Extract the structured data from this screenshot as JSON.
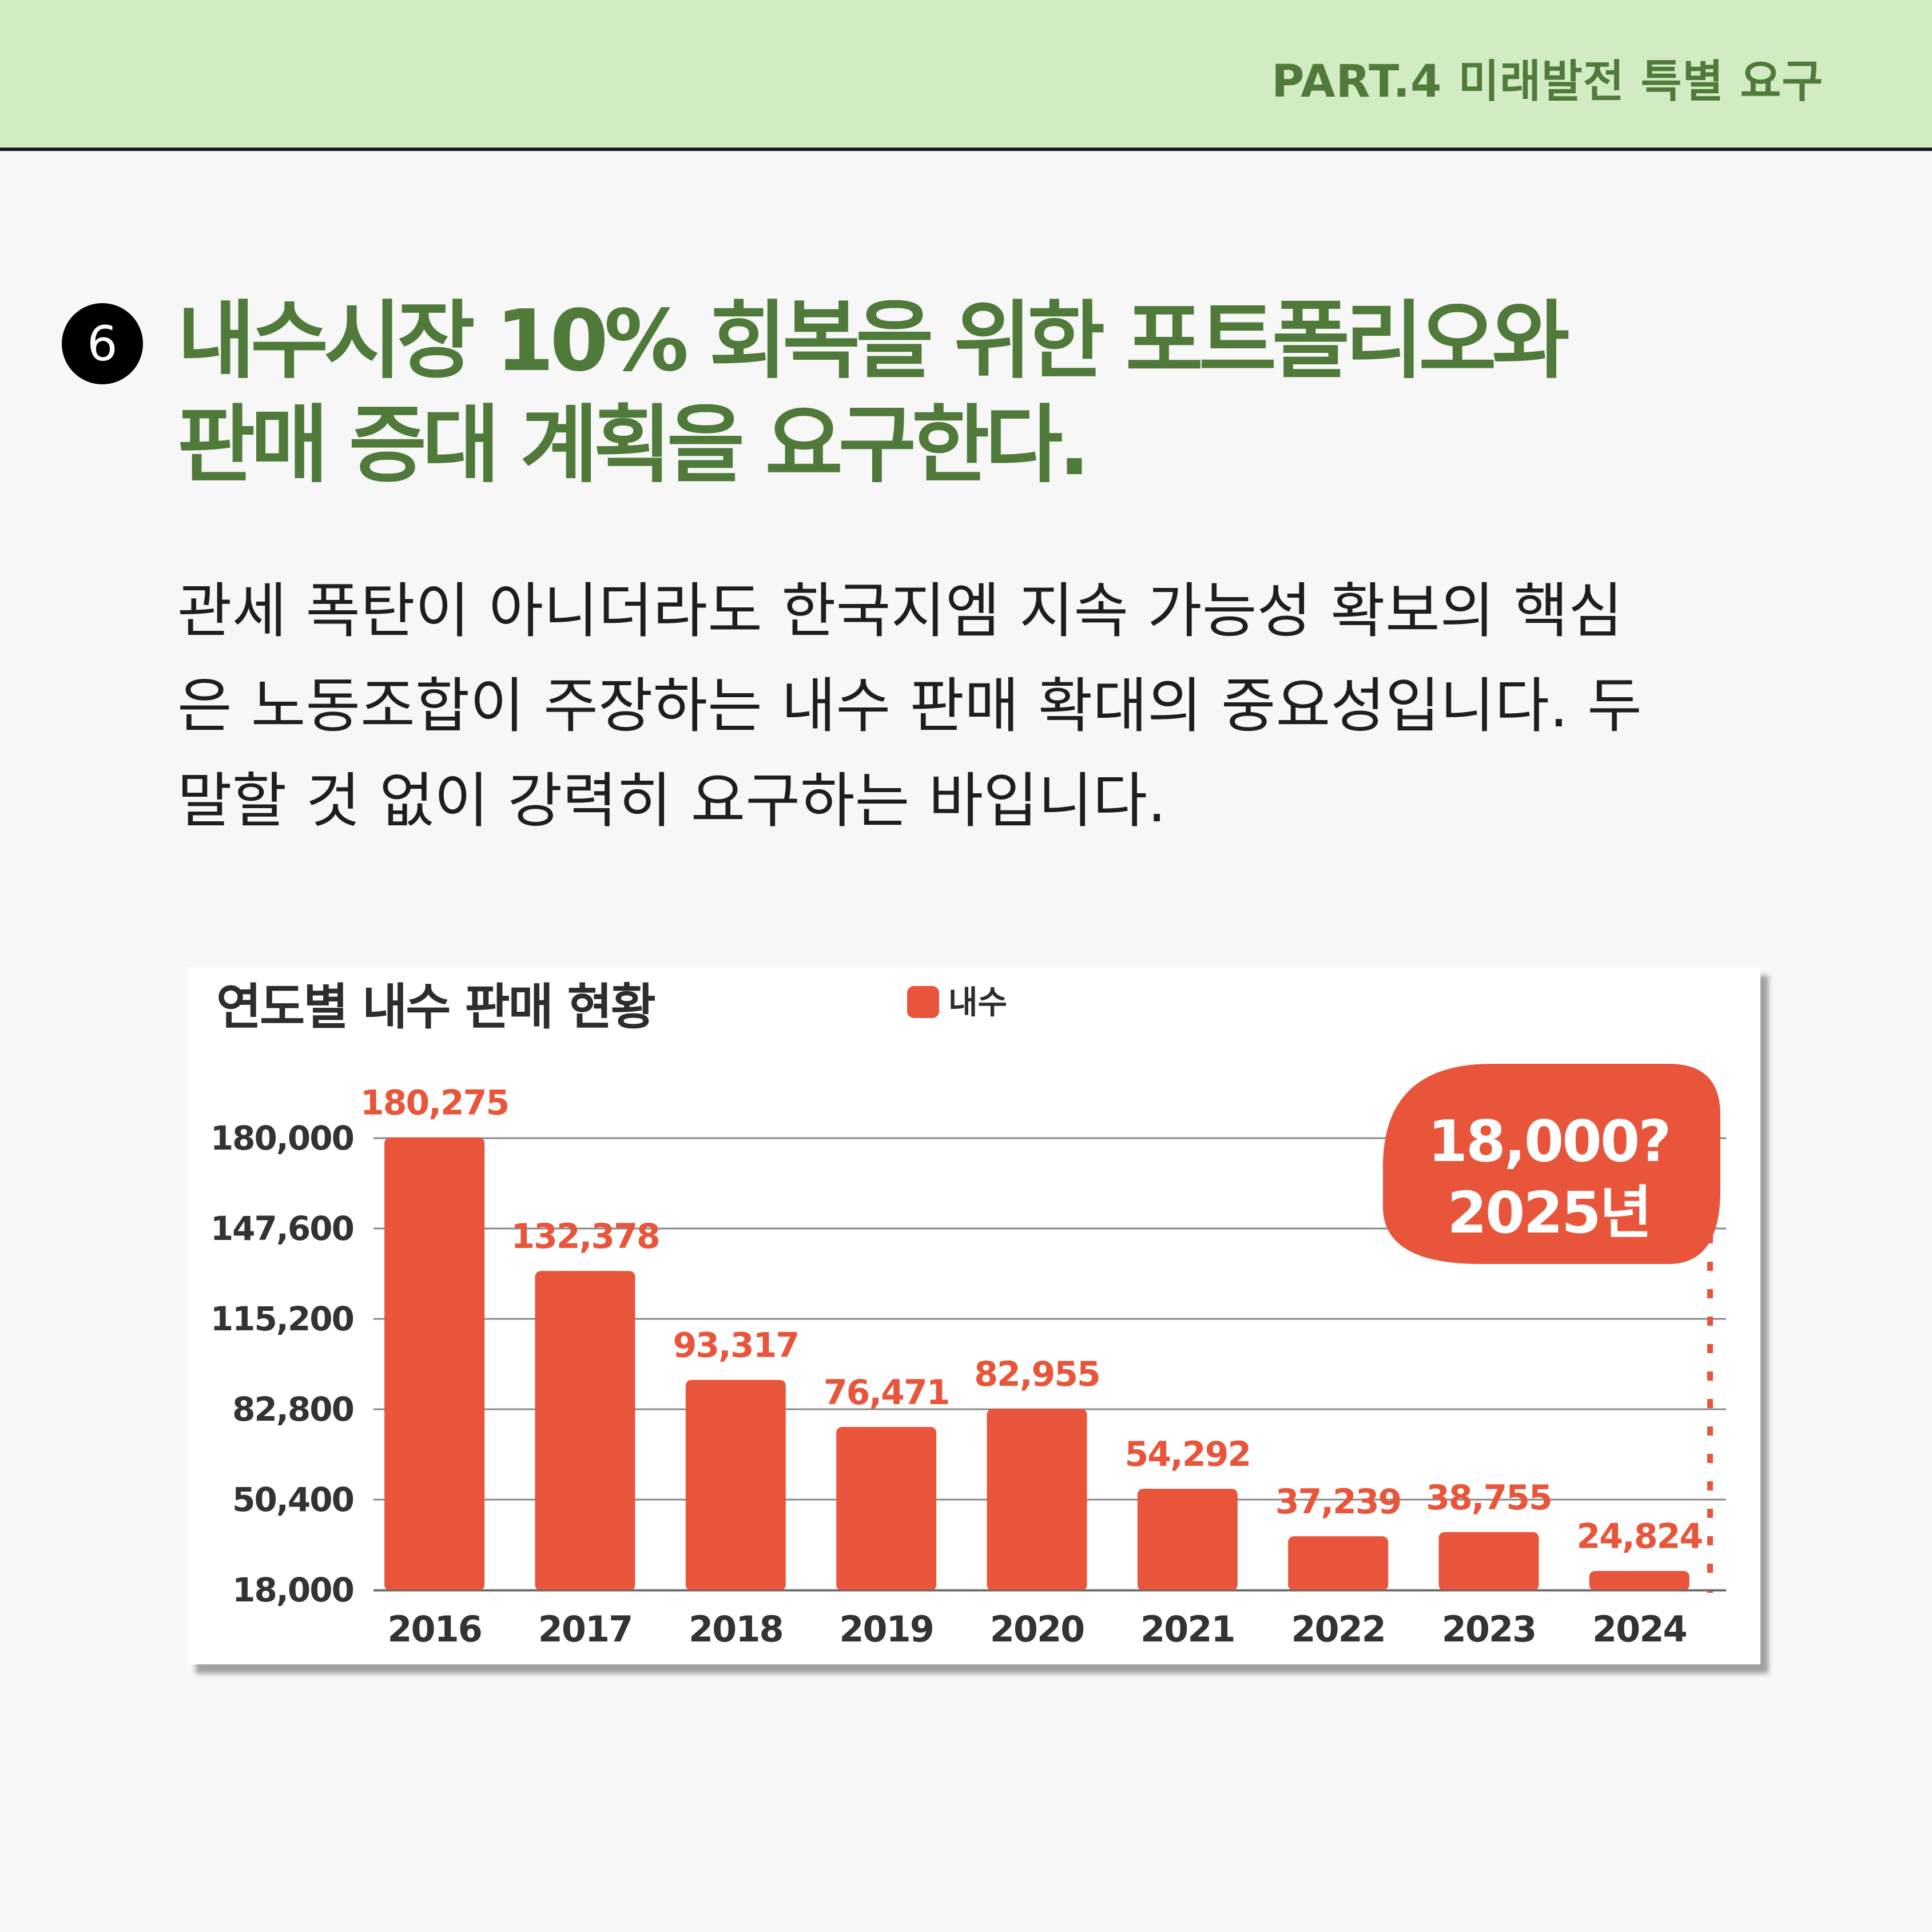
{
  "header": {
    "part_label": "PART.4 미래발전 특별 요구"
  },
  "section": {
    "number": "6",
    "title_line1": "내수시장 10% 회복을 위한 포트폴리오와",
    "title_line2": "판매 증대 계획을 요구한다."
  },
  "body": {
    "line1": "관세 폭탄이 아니더라도 한국지엠 지속 가능성 확보의 핵심",
    "line2": "은 노동조합이 주장하는 내수 판매 확대의 중요성입니다. 두",
    "line3": "말할 것 없이 강력히 요구하는 바입니다."
  },
  "colors": {
    "bar": "#e8553a",
    "heading": "#4f7a3a",
    "band": "#d3ebc3"
  },
  "chart_data": {
    "type": "bar",
    "title": "연도별 내수 판매 현황",
    "legend": [
      "내수"
    ],
    "legend_placement": "top",
    "categories": [
      "2016",
      "2017",
      "2018",
      "2019",
      "2020",
      "2021",
      "2022",
      "2023",
      "2024"
    ],
    "series": [
      {
        "name": "내수",
        "values": [
          180275,
          132378,
          93317,
          76471,
          82955,
          54292,
          37239,
          38755,
          24824
        ],
        "labels": [
          "180,275",
          "132,378",
          "93,317",
          "76,471",
          "82,955",
          "54,292",
          "37,239",
          "38,755",
          "24,824"
        ]
      }
    ],
    "yticks": [
      180000,
      147600,
      115200,
      82800,
      50400,
      18000
    ],
    "ytick_labels": [
      "180,000",
      "147,600",
      "115,200",
      "82,800",
      "50,400",
      "18,000"
    ],
    "ylim": [
      18000,
      180000
    ],
    "grid": true,
    "callout": {
      "line1": "18,000?",
      "line2": "2025년"
    }
  }
}
